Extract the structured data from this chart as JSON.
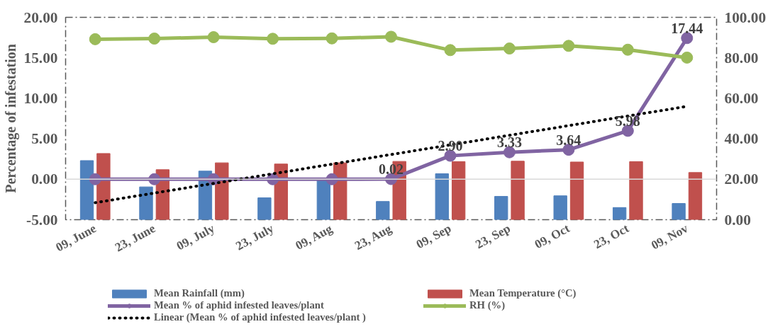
{
  "chart_data": {
    "type": "bar",
    "ylabel": "Percentage of infestation",
    "categories": [
      "09, June",
      "23, June",
      "09, July",
      "23, July",
      "09, Aug",
      "23, Aug",
      "09, Sep",
      "23, Sep",
      "09, Oct",
      "23, Oct",
      "09, Nov"
    ],
    "series": [
      {
        "name": "Mean Rainfall (mm)",
        "axis": "y2",
        "color": "#4f81bd",
        "values": [
          29.2,
          16.2,
          24.0,
          10.8,
          19.7,
          9.0,
          22.7,
          11.5,
          11.8,
          6.0,
          8.0
        ]
      },
      {
        "name": "Mean Temperature (°C)",
        "axis": "y2",
        "color": "#c0504d",
        "values": [
          32.7,
          24.7,
          28.1,
          27.5,
          28.1,
          28.8,
          28.7,
          28.9,
          28.5,
          28.7,
          23.3
        ]
      },
      {
        "name": "Mean % of aphid infested leaves/plant",
        "type": "line",
        "marker": "circle",
        "color": "#8064a2",
        "values": [
          0,
          0,
          0,
          0,
          0,
          0.02,
          2.9,
          3.33,
          3.64,
          5.98,
          17.44
        ],
        "value_labels": [
          null,
          null,
          null,
          null,
          null,
          "0.02",
          "2.90",
          "3.33",
          "3.64",
          "5.98",
          "17.44"
        ]
      },
      {
        "name": "RH (%)",
        "type": "line",
        "marker": "circle",
        "axis": "y2",
        "color": "#9bbb59",
        "values": [
          89.2,
          89.5,
          90.2,
          89.4,
          89.6,
          90.4,
          83.8,
          84.6,
          85.9,
          84.0,
          80.1
        ]
      },
      {
        "name": "Linear (Mean % of aphid infested leaves/plant )",
        "type": "line",
        "marker": "none",
        "line_style": "dotted",
        "color": "#000000",
        "x": [
          "09, June",
          "09, Nov"
        ],
        "values": [
          -2.9,
          9.0
        ]
      }
    ],
    "ylim": [
      -5,
      20
    ],
    "yticks": [
      {
        "value": -5,
        "label": "-5.00"
      },
      {
        "value": 0,
        "label": "0.00"
      },
      {
        "value": 5,
        "label": "5.00"
      },
      {
        "value": 10,
        "label": "10.00"
      },
      {
        "value": 15,
        "label": "15.00"
      },
      {
        "value": 20,
        "label": "20.00"
      }
    ],
    "y2lim": [
      0,
      100
    ],
    "y2ticks": [
      {
        "value": 0,
        "label": "0.00"
      },
      {
        "value": 20,
        "label": "20.00"
      },
      {
        "value": 40,
        "label": "40.00"
      },
      {
        "value": 60,
        "label": "60.00"
      },
      {
        "value": 80,
        "label": "80.00"
      },
      {
        "value": 100,
        "label": "100.00"
      }
    ],
    "ref_lines": [
      {
        "axis": "y",
        "value": 0,
        "color": "#d9d9d9"
      }
    ],
    "grid": false,
    "legend": "bottom"
  }
}
